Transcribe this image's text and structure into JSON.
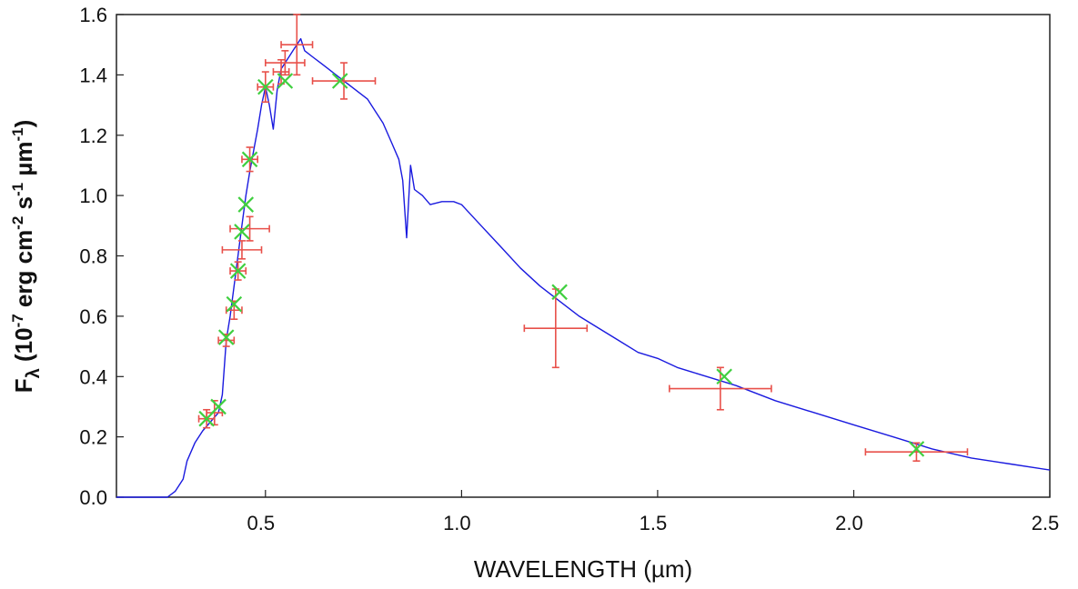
{
  "chart_data": {
    "type": "line",
    "xlabel": "WAVELENGTH (µm)",
    "ylabel": {
      "prefix": "F",
      "lambda": "λ",
      "p1": " (10",
      "e1": "-7",
      "p2": " erg cm",
      "e2": "-2",
      "p3": " s",
      "e3": "-1",
      "p4": " µm",
      "e4": "-1",
      "p5": ")"
    },
    "xlim": [
      0.12,
      2.5
    ],
    "ylim": [
      0.0,
      1.6
    ],
    "x_ticks": [
      0.5,
      1.0,
      1.5,
      2.0,
      2.5
    ],
    "x_tick_labels": [
      "0.5",
      "1.0",
      "1.5",
      "2.0",
      "2.5"
    ],
    "y_ticks": [
      0.0,
      0.2,
      0.4,
      0.6,
      0.8,
      1.0,
      1.2,
      1.4,
      1.6
    ],
    "y_tick_labels": [
      "0.0",
      "0.2",
      "0.4",
      "0.6",
      "0.8",
      "1.0",
      "1.2",
      "1.4",
      "1.6"
    ],
    "grid": false,
    "colors": {
      "spectrum": "#1a1adf",
      "observed": "#e8504a",
      "model": "#3fcf3f"
    },
    "series": [
      {
        "kind": "spectrum",
        "x": [
          0.12,
          0.25,
          0.27,
          0.29,
          0.3,
          0.32,
          0.34,
          0.36,
          0.38,
          0.39,
          0.4,
          0.41,
          0.42,
          0.43,
          0.44,
          0.45,
          0.46,
          0.47,
          0.48,
          0.49,
          0.5,
          0.51,
          0.52,
          0.53,
          0.54,
          0.55,
          0.56,
          0.57,
          0.58,
          0.59,
          0.6,
          0.62,
          0.64,
          0.66,
          0.68,
          0.7,
          0.72,
          0.74,
          0.76,
          0.78,
          0.8,
          0.82,
          0.84,
          0.85,
          0.86,
          0.87,
          0.88,
          0.9,
          0.92,
          0.95,
          0.98,
          1.0,
          1.05,
          1.1,
          1.15,
          1.2,
          1.25,
          1.3,
          1.35,
          1.4,
          1.45,
          1.5,
          1.55,
          1.6,
          1.65,
          1.7,
          1.8,
          1.9,
          2.0,
          2.1,
          2.2,
          2.3,
          2.4,
          2.5
        ],
        "y": [
          0.0,
          0.0,
          0.02,
          0.06,
          0.12,
          0.18,
          0.22,
          0.25,
          0.28,
          0.34,
          0.52,
          0.6,
          0.7,
          0.8,
          0.9,
          1.0,
          1.08,
          1.15,
          1.22,
          1.3,
          1.36,
          1.3,
          1.22,
          1.35,
          1.42,
          1.44,
          1.46,
          1.48,
          1.5,
          1.52,
          1.48,
          1.46,
          1.44,
          1.42,
          1.4,
          1.38,
          1.36,
          1.34,
          1.32,
          1.28,
          1.24,
          1.18,
          1.12,
          1.05,
          0.86,
          1.1,
          1.02,
          1.0,
          0.97,
          0.98,
          0.98,
          0.97,
          0.9,
          0.83,
          0.76,
          0.7,
          0.65,
          0.6,
          0.56,
          0.52,
          0.48,
          0.46,
          0.43,
          0.41,
          0.39,
          0.37,
          0.32,
          0.28,
          0.24,
          0.2,
          0.16,
          0.13,
          0.11,
          0.09
        ]
      },
      {
        "kind": "observed",
        "points": [
          {
            "x": 0.35,
            "y": 0.26,
            "xerr": 0.02,
            "yerr": 0.03
          },
          {
            "x": 0.37,
            "y": 0.28,
            "xerr": 0.02,
            "yerr": 0.04
          },
          {
            "x": 0.4,
            "y": 0.52,
            "xerr": 0.02,
            "yerr": 0.02
          },
          {
            "x": 0.42,
            "y": 0.62,
            "xerr": 0.02,
            "yerr": 0.03
          },
          {
            "x": 0.43,
            "y": 0.75,
            "xerr": 0.02,
            "yerr": 0.03
          },
          {
            "x": 0.44,
            "y": 0.82,
            "xerr": 0.05,
            "yerr": 0.03
          },
          {
            "x": 0.46,
            "y": 0.89,
            "xerr": 0.05,
            "yerr": 0.04
          },
          {
            "x": 0.46,
            "y": 1.12,
            "xerr": 0.02,
            "yerr": 0.04
          },
          {
            "x": 0.5,
            "y": 1.36,
            "xerr": 0.02,
            "yerr": 0.05
          },
          {
            "x": 0.54,
            "y": 1.41,
            "xerr": 0.02,
            "yerr": 0.04
          },
          {
            "x": 0.55,
            "y": 1.44,
            "xerr": 0.05,
            "yerr": 0.04
          },
          {
            "x": 0.58,
            "y": 1.5,
            "xerr": 0.04,
            "yerr": 0.1
          },
          {
            "x": 0.7,
            "y": 1.38,
            "xerr": 0.08,
            "yerr": 0.06
          },
          {
            "x": 1.24,
            "y": 0.56,
            "xerr": 0.08,
            "yerr": 0.13
          },
          {
            "x": 1.66,
            "y": 0.36,
            "xerr": 0.13,
            "yerr": 0.07
          },
          {
            "x": 2.16,
            "y": 0.15,
            "xerr": 0.13,
            "yerr": 0.03
          }
        ]
      },
      {
        "kind": "model",
        "points": [
          {
            "x": 0.35,
            "y": 0.26
          },
          {
            "x": 0.38,
            "y": 0.3
          },
          {
            "x": 0.4,
            "y": 0.53
          },
          {
            "x": 0.42,
            "y": 0.64
          },
          {
            "x": 0.43,
            "y": 0.75
          },
          {
            "x": 0.44,
            "y": 0.88
          },
          {
            "x": 0.45,
            "y": 0.97
          },
          {
            "x": 0.46,
            "y": 1.12
          },
          {
            "x": 0.5,
            "y": 1.36
          },
          {
            "x": 0.55,
            "y": 1.38
          },
          {
            "x": 0.69,
            "y": 1.38
          },
          {
            "x": 1.25,
            "y": 0.68
          },
          {
            "x": 1.67,
            "y": 0.4
          },
          {
            "x": 2.16,
            "y": 0.16
          }
        ]
      }
    ]
  }
}
